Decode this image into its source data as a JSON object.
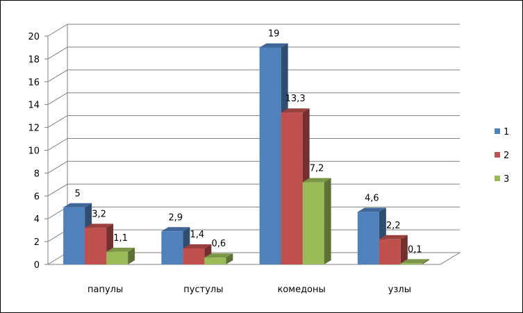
{
  "chart_data": {
    "type": "bar",
    "categories": [
      "папулы",
      "пустулы",
      "комедоны",
      "узлы"
    ],
    "series": [
      {
        "name": "1",
        "values": [
          5,
          2.9,
          19,
          4.6
        ],
        "labels": [
          "5",
          "2,9",
          "19",
          "4,6"
        ],
        "color": "#4F81BD"
      },
      {
        "name": "2",
        "values": [
          3.2,
          1.4,
          13.3,
          2.2
        ],
        "labels": [
          "3,2",
          "1,4",
          "13,3",
          "2,2"
        ],
        "color": "#C0504D"
      },
      {
        "name": "3",
        "values": [
          1.1,
          0.6,
          7.2,
          0.1
        ],
        "labels": [
          "1,1",
          "0,6",
          "7,2",
          "0,1"
        ],
        "color": "#9BBB59"
      }
    ],
    "ylim": [
      0,
      20
    ],
    "yticks": [
      "0",
      "2",
      "4",
      "6",
      "8",
      "10",
      "12",
      "14",
      "16",
      "18",
      "20"
    ],
    "grid": true,
    "legend": "right",
    "style": "3d-clustered"
  }
}
